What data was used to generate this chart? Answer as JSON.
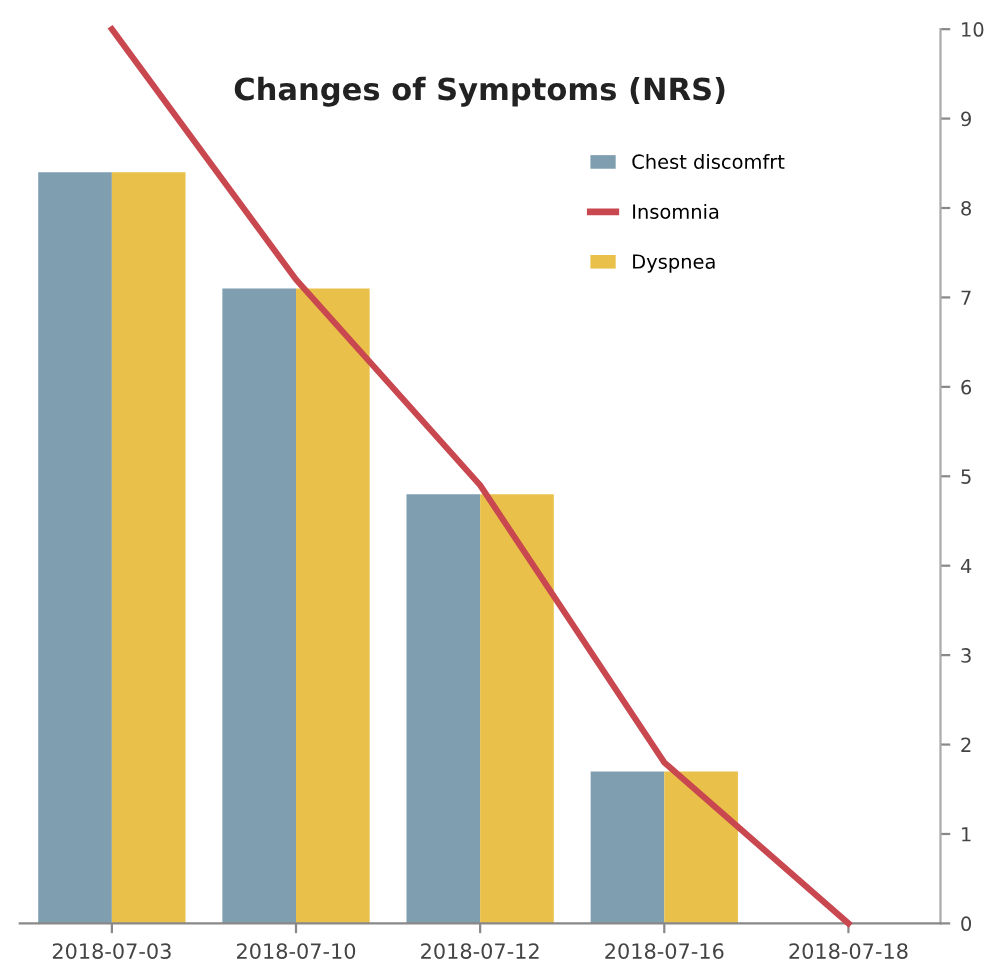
{
  "chart_data": {
    "type": "bar",
    "title": "Changes of Symptoms (NRS)",
    "categories": [
      "2018-07-03",
      "2018-07-10",
      "2018-07-12",
      "2018-07-16",
      "2018-07-18"
    ],
    "series": [
      {
        "name": "Chest discomfrt",
        "color": "#7f9fb1",
        "values": [
          8.4,
          7.1,
          4.8,
          1.7,
          null
        ]
      },
      {
        "name": "Insomnia",
        "type": "line",
        "color": "#c9474f",
        "values": [
          10,
          7.2,
          4.9,
          1.8,
          0
        ]
      },
      {
        "name": "Dyspnea",
        "color": "#e9c14a",
        "values": [
          8.4,
          7.1,
          4.8,
          1.7,
          null
        ]
      }
    ],
    "ylim": [
      0,
      10
    ],
    "yticks": [
      0,
      1,
      2,
      3,
      4,
      5,
      6,
      7,
      8,
      9,
      10
    ],
    "grid": false,
    "legend": "top right"
  }
}
